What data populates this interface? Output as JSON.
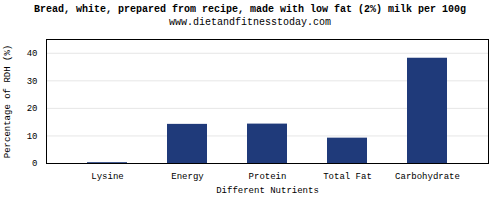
{
  "chart_data": {
    "type": "bar",
    "title": "Bread, white, prepared from recipe, made with low fat (2%) milk per 100g",
    "subtitle": "www.dietandfitnesstoday.com",
    "xlabel": "Different Nutrients",
    "ylabel": "Percentage of RDH (%)",
    "categories": [
      "Lysine",
      "Energy",
      "Protein",
      "Total Fat",
      "Carbohydrate"
    ],
    "values": [
      0.3,
      14.2,
      14.3,
      9.2,
      38.2
    ],
    "color": "#1f3a7a",
    "ylim": [
      0,
      45
    ],
    "yticks": [
      0,
      10,
      20,
      30,
      40
    ],
    "grid": true
  }
}
